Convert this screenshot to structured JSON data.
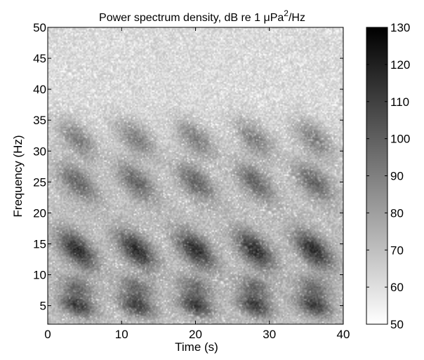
{
  "chart_data": {
    "type": "heatmap",
    "title": "Power spectrum density, dB re 1 μPa²/Hz",
    "title_parts": {
      "main": "Power spectrum density, dB re 1 ",
      "mu": "μ",
      "pa": "Pa",
      "sup": "2",
      "unit": "/Hz"
    },
    "xlabel": "Time (s)",
    "ylabel": "Frequency (Hz)",
    "xlim": [
      0,
      40
    ],
    "ylim": [
      2,
      50
    ],
    "x_ticks": [
      "0",
      "10",
      "20",
      "30",
      "40"
    ],
    "y_ticks": [
      "5",
      "10",
      "15",
      "20",
      "25",
      "30",
      "35",
      "40",
      "45",
      "50"
    ],
    "colorbar": {
      "range": [
        50,
        130
      ],
      "ticks": [
        "50",
        "60",
        "70",
        "80",
        "90",
        "100",
        "110",
        "120",
        "130"
      ],
      "colormap": "gray-reversed"
    },
    "pulse_times_s": [
      4,
      12,
      20,
      28,
      36
    ],
    "bands": [
      {
        "frequency_hz": 5,
        "level_db": 110
      },
      {
        "frequency_hz": 8,
        "level_db": 95
      },
      {
        "frequency_hz": 14,
        "level_db": 115
      },
      {
        "frequency_hz": 25,
        "level_db": 100
      },
      {
        "frequency_hz": 32,
        "level_db": 95
      }
    ],
    "background_level_db": 70,
    "high_frequency_level_db": 62
  }
}
